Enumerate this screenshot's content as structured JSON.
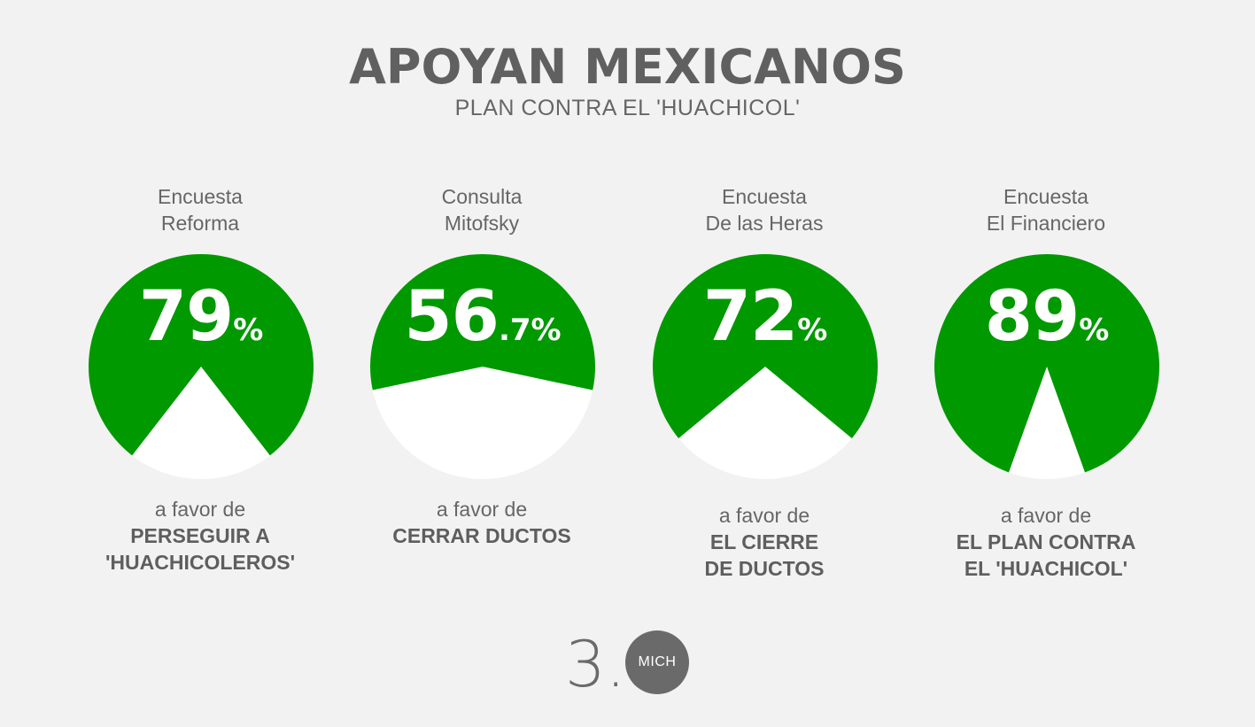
{
  "header": {
    "title": "APOYAN MEXICANOS",
    "subtitle": "PLAN CONTRA EL 'HUACHICOL'"
  },
  "colors": {
    "background": "#f2f2f2",
    "favor": "#009900",
    "remainder": "#ffffff",
    "text": "#666666"
  },
  "chart_data": {
    "type": "pie",
    "charts": [
      {
        "source_line1": "Encuesta",
        "source_line2": "Reforma",
        "value": 79,
        "value_int": "79",
        "value_dec": "",
        "unit": "%",
        "caption_pre": "a favor de",
        "caption_line1": "PERSEGUIR A",
        "caption_line2": "'HUACHICOLEROS'"
      },
      {
        "source_line1": "Consulta",
        "source_line2": "Mitofsky",
        "value": 56.7,
        "value_int": "56",
        "value_dec": ".7",
        "unit": "%",
        "caption_pre": "a favor de",
        "caption_line1": "CERRAR DUCTOS",
        "caption_line2": ""
      },
      {
        "source_line1": "Encuesta",
        "source_line2": "De las Heras",
        "value": 72,
        "value_int": "72",
        "value_dec": "",
        "unit": "%",
        "caption_pre": "a favor de",
        "caption_line1": "EL CIERRE",
        "caption_line2": "DE DUCTOS"
      },
      {
        "source_line1": "Encuesta",
        "source_line2": "El Financiero",
        "value": 89,
        "value_int": "89",
        "value_dec": "",
        "unit": "%",
        "caption_pre": "a favor de",
        "caption_line1": "EL PLAN CONTRA",
        "caption_line2": "EL 'HUACHICOL'"
      }
    ]
  },
  "logo": {
    "number": "3.",
    "badge": "MICH"
  }
}
